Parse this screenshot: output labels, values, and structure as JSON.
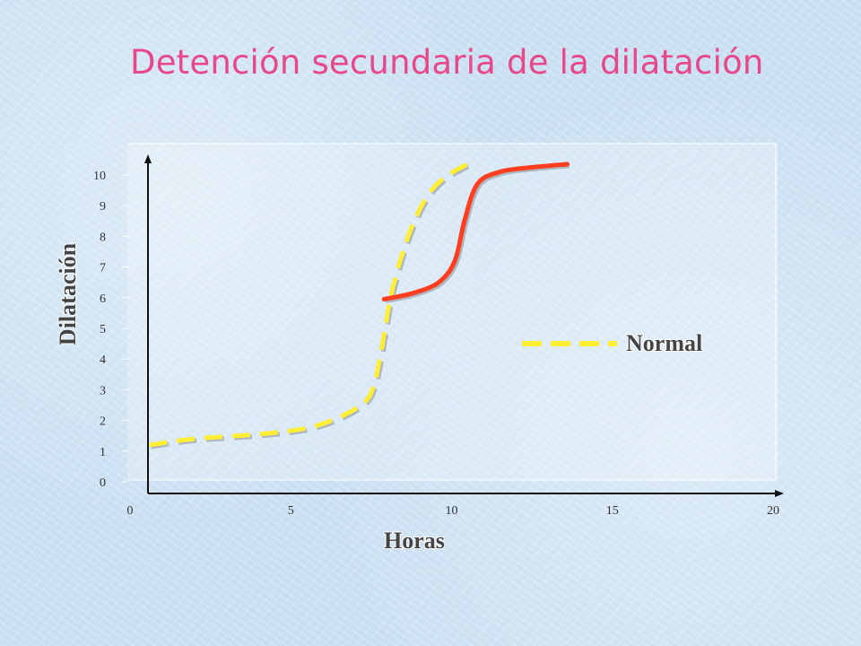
{
  "title": "Detención secundaria de la dilatación",
  "chart_data": {
    "type": "line",
    "xlabel": "Horas",
    "ylabel": "Dilatación",
    "xlim": [
      0,
      20
    ],
    "ylim": [
      0,
      10
    ],
    "x_ticks": [
      "0",
      "5",
      "10",
      "15",
      "20"
    ],
    "y_ticks": [
      "0",
      "1",
      "2",
      "3",
      "4",
      "5",
      "6",
      "7",
      "8",
      "9",
      "10"
    ],
    "grid": false,
    "legend_position": "right",
    "series": [
      {
        "name": "Normal",
        "style": "dashed",
        "color": "#ffee33",
        "points": [
          [
            0.6,
            1.2
          ],
          [
            2,
            1.4
          ],
          [
            4,
            1.55
          ],
          [
            5.5,
            1.75
          ],
          [
            6.5,
            2.1
          ],
          [
            7.3,
            2.6
          ],
          [
            7.6,
            3.2
          ],
          [
            7.8,
            4.2
          ],
          [
            7.95,
            5.1
          ],
          [
            8.1,
            6.0
          ],
          [
            8.4,
            7.2
          ],
          [
            8.8,
            8.4
          ],
          [
            9.3,
            9.4
          ],
          [
            9.9,
            10.0
          ],
          [
            10.6,
            10.4
          ]
        ]
      },
      {
        "name": "",
        "style": "solid",
        "color": "#ff3d1f",
        "points": [
          [
            7.9,
            5.95
          ],
          [
            8.8,
            6.15
          ],
          [
            9.6,
            6.5
          ],
          [
            10.1,
            7.2
          ],
          [
            10.4,
            8.5
          ],
          [
            10.8,
            9.7
          ],
          [
            11.5,
            10.1
          ],
          [
            12.5,
            10.25
          ],
          [
            13.6,
            10.35
          ]
        ]
      }
    ]
  }
}
